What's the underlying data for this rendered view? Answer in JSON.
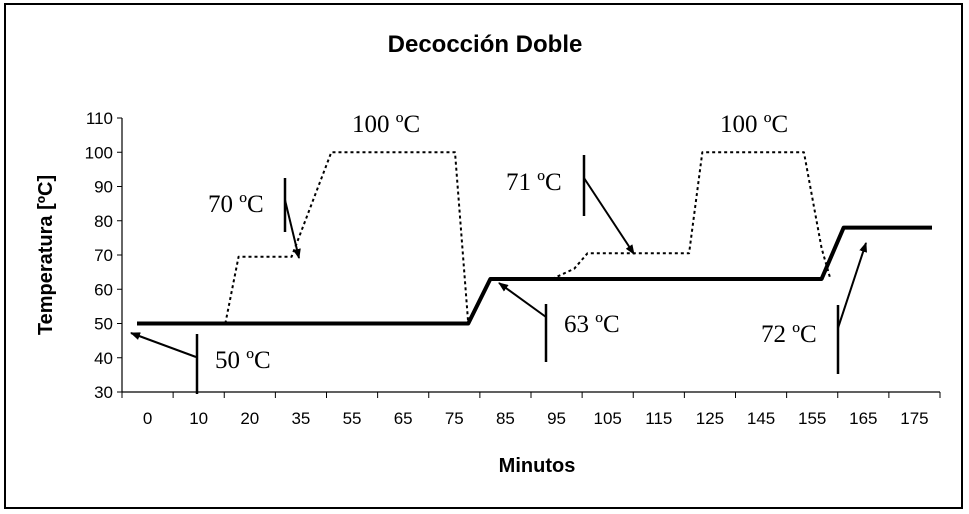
{
  "chart_data": {
    "type": "line",
    "title": "Decocción Doble",
    "xlabel": "Minutos",
    "ylabel": "Temperatura [ºC]",
    "ylim": [
      30,
      110
    ],
    "yticks": [
      30,
      40,
      50,
      60,
      70,
      80,
      90,
      100,
      110
    ],
    "xtick_labels": [
      "0",
      "10",
      "20",
      "35",
      "55",
      "65",
      "75",
      "85",
      "95",
      "105",
      "115",
      "125",
      "145",
      "155",
      "165",
      "175"
    ],
    "grid": false,
    "legend": "none",
    "series": [
      {
        "style": "solid",
        "x": [
          0,
          10,
          20,
          35,
          55,
          65,
          75,
          80,
          85,
          95,
          105,
          115,
          125,
          145,
          155,
          160,
          165,
          175,
          180
        ],
        "y": [
          50,
          50,
          50,
          50,
          50,
          50,
          50,
          63,
          63,
          63,
          63,
          63,
          63,
          63,
          63,
          78,
          78,
          78,
          78
        ]
      },
      {
        "style": "dotted",
        "x": [
          20,
          23,
          32,
          35,
          44,
          47,
          72,
          75
        ],
        "y": [
          50,
          69.5,
          69.5,
          69.5,
          100,
          100,
          100,
          50
        ]
      },
      {
        "style": "dotted",
        "x": [
          94,
          99,
          102,
          120,
          125,
          128,
          145,
          151,
          155,
          157
        ],
        "y": [
          63,
          66,
          70.5,
          70.5,
          70.5,
          100,
          100,
          100,
          72,
          63
        ]
      }
    ],
    "annotations": [
      {
        "text": "50 ºC"
      },
      {
        "text": "70 ºC"
      },
      {
        "text": "100 ºC"
      },
      {
        "text": "71 ºC"
      },
      {
        "text": "100 ºC"
      },
      {
        "text": "63 ºC"
      },
      {
        "text": "72 ºC"
      }
    ]
  }
}
